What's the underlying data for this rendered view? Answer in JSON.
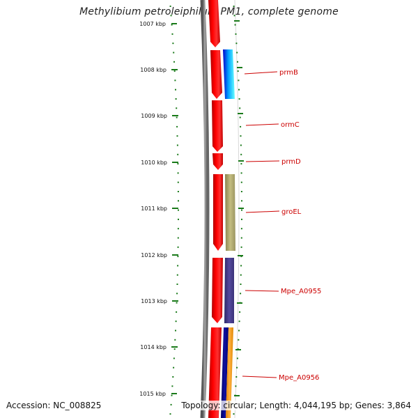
{
  "title": "Methylibium petroleiphilum PM1, complete genome",
  "accession_text": "Accession: NC_008825",
  "summary_text": "Topology: circular; Length: 4,044,195 bp; Genes: 3,864",
  "colors": {
    "gene_red": "#ff0000",
    "label_red": "#cc0000",
    "tick_green": "#1a7a1a",
    "backbone_gray": "#888888",
    "prmB": [
      "#0000cc",
      "#00aaff",
      "#66ffff"
    ],
    "groEL": "#b8b070",
    "Mpe_A0955": "#4a3f8a",
    "Mpe_A0956": [
      "#000088",
      "#ff9900"
    ]
  },
  "scale": {
    "ticks": [
      "1007 kbp",
      "1008 kbp",
      "1009 kbp",
      "1010 kbp",
      "1011 kbp",
      "1012 kbp",
      "1013 kbp",
      "1014 kbp",
      "1015 kbp"
    ]
  },
  "genes": {
    "labels": [
      "prmB",
      "ormC",
      "prmD",
      "groEL",
      "Mpe_A0955",
      "Mpe_A0956"
    ]
  }
}
